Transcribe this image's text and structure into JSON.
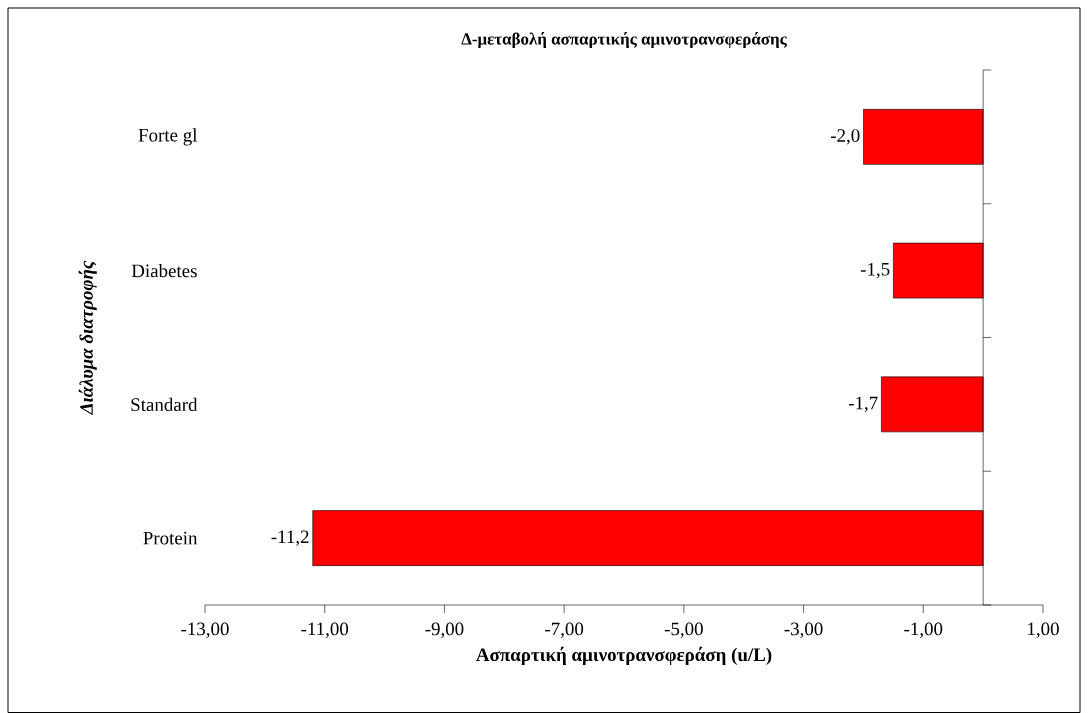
{
  "chart_data": {
    "type": "bar",
    "orientation": "horizontal",
    "title": "Δ-μεταβολή ασπαρτικής αμινοτρανσφεράσης",
    "xlabel": "Ασπαρτική αμινοτρανσφεράση (u/L)",
    "ylabel": "Διάλυμα διατροφής",
    "categories": [
      "Forte gl",
      "Diabetes",
      "Standard",
      "Protein"
    ],
    "values": [
      -2.0,
      -1.5,
      -1.7,
      -11.2
    ],
    "value_labels": [
      "-2,0",
      "-1,5",
      "-1,7",
      "-11,2"
    ],
    "color": "#ff0000",
    "xlim": [
      -13,
      1
    ],
    "xticks": [
      {
        "value": -13,
        "label": "-13,00"
      },
      {
        "value": -11,
        "label": "-11,00"
      },
      {
        "value": -9,
        "label": "-9,00"
      },
      {
        "value": -7,
        "label": "-7,00"
      },
      {
        "value": -5,
        "label": "-5,00"
      },
      {
        "value": -3,
        "label": "-3,00"
      },
      {
        "value": -1,
        "label": "-1,00"
      },
      {
        "value": 1,
        "label": "1,00"
      }
    ]
  }
}
